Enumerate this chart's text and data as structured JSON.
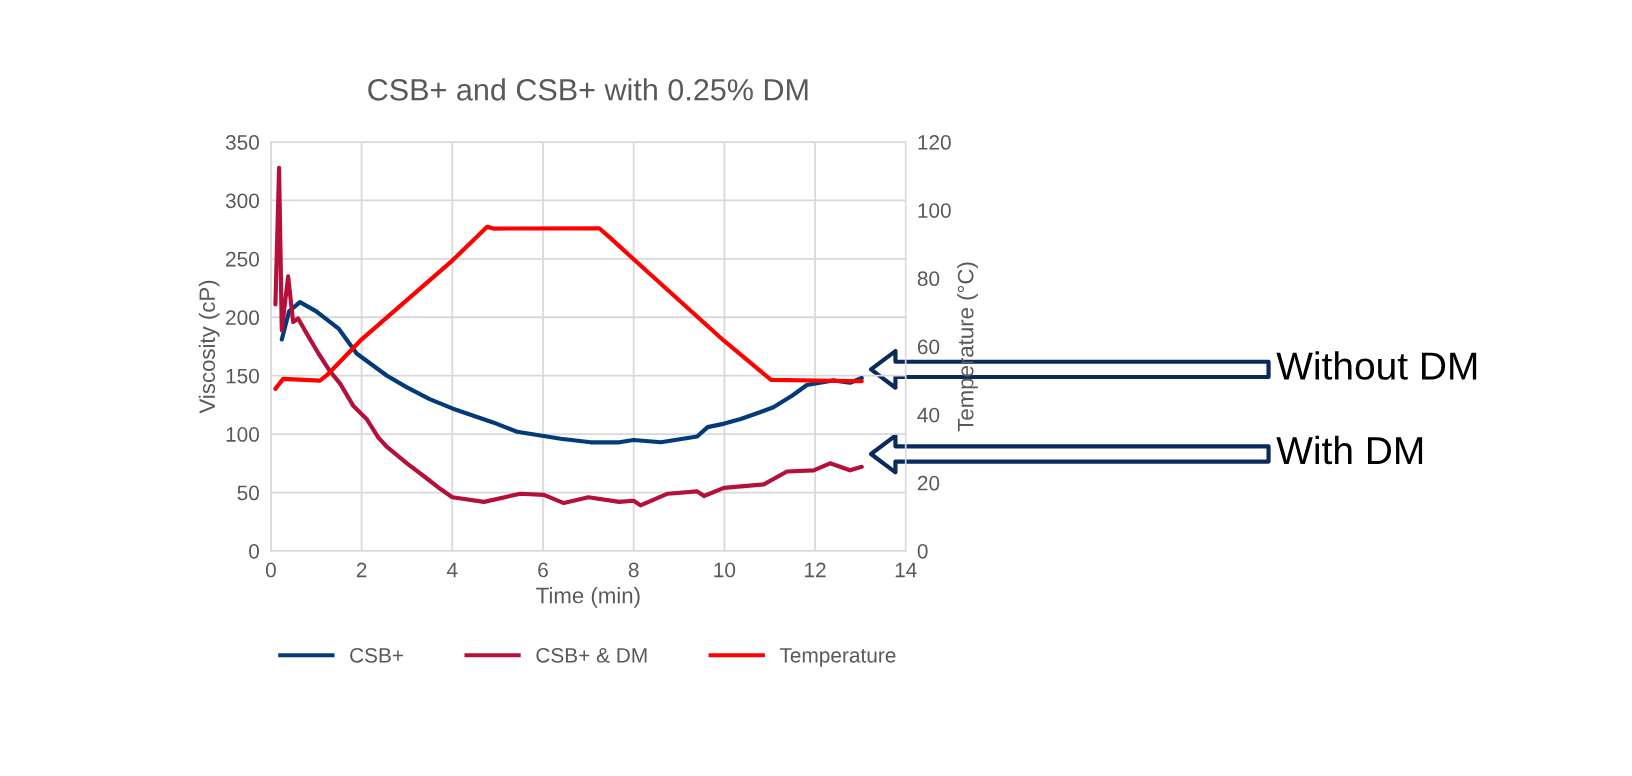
{
  "chart_data": {
    "type": "line",
    "title": "CSB+ and CSB+ with 0.25% DM",
    "xlabel": "Time (min)",
    "ylabel": "Viscosity (cP)",
    "y2label": "Temperature (°C)",
    "xlim": [
      0,
      14
    ],
    "xticks": [
      0,
      2,
      4,
      6,
      8,
      10,
      12,
      14
    ],
    "ylim": [
      0,
      350
    ],
    "yticks": [
      0,
      50,
      100,
      150,
      200,
      250,
      300,
      350
    ],
    "y2lim": [
      0,
      120
    ],
    "y2ticks": [
      0,
      20,
      40,
      60,
      80,
      100,
      120
    ],
    "grid": true,
    "legend": "bottom",
    "marker": "none",
    "line_style": "solid",
    "series": [
      {
        "name": "CSB+",
        "color": "#033a78",
        "x": [
          0.24,
          0.4,
          0.64,
          1.0,
          1.5,
          1.89,
          2.56,
          3.0,
          3.5,
          4.0,
          4.9,
          5.43,
          6.39,
          7.05,
          7.68,
          8.0,
          8.6,
          9.4,
          9.63,
          10.0,
          10.36,
          10.8,
          11.08,
          11.5,
          11.82,
          12.4,
          12.77,
          13.03
        ],
        "values": [
          181,
          205,
          213,
          205,
          190,
          169,
          150,
          140,
          130,
          122,
          110,
          102,
          96,
          93,
          93,
          95,
          93,
          98,
          106,
          109,
          113,
          119,
          123,
          133,
          142,
          146,
          144,
          148
        ]
      },
      {
        "name": "CSB+ & DM",
        "color": "#b5103a",
        "x": [
          0.1,
          0.18,
          0.24,
          0.38,
          0.49,
          0.6,
          0.79,
          1.05,
          1.3,
          1.53,
          1.82,
          2.11,
          2.37,
          2.56,
          3.0,
          3.44,
          3.74,
          4.0,
          4.7,
          5.5,
          6.02,
          6.46,
          7.0,
          7.68,
          8.0,
          8.15,
          8.75,
          9.4,
          9.55,
          9.99,
          10.87,
          11.38,
          11.97,
          12.33,
          12.77,
          13.03
        ],
        "values": [
          211,
          328,
          189,
          235,
          196,
          199,
          186,
          169,
          154,
          143,
          124,
          113,
          97,
          89,
          75,
          62,
          53,
          46,
          42,
          49,
          48,
          41,
          46,
          42,
          43,
          39,
          49,
          51,
          47,
          54,
          57,
          68,
          69,
          75,
          69,
          72
        ]
      },
      {
        "name": "Temperature",
        "color": "#ff0000",
        "axis": "y2",
        "x": [
          0.1,
          0.27,
          1.08,
          1.23,
          1.97,
          4.0,
          4.77,
          4.91,
          7.24,
          7.49,
          8.0,
          9.99,
          11.03,
          13.03
        ],
        "values": [
          47.6,
          50.5,
          50,
          51.5,
          61.7,
          85.2,
          95.1,
          94.6,
          94.7,
          91.8,
          85.6,
          61.7,
          50.2,
          49.8
        ]
      }
    ],
    "annotations": [
      "Without DM",
      "With DM"
    ]
  }
}
